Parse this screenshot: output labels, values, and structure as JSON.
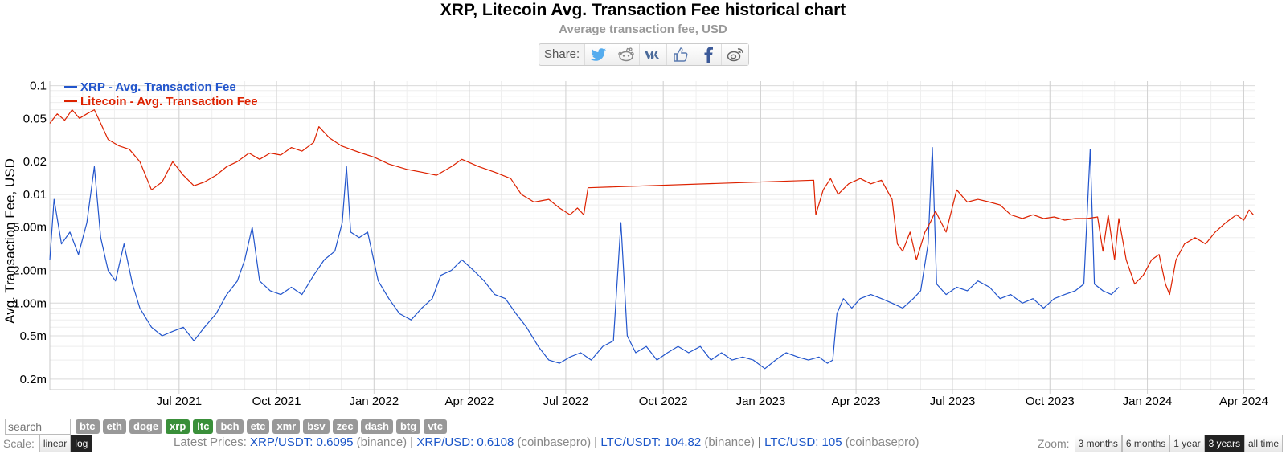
{
  "header": {
    "title": "XRP, Litecoin Avg. Transaction Fee historical chart",
    "subtitle": "Average transaction fee, USD"
  },
  "share": {
    "label": "Share:",
    "buttons": [
      "twitter-icon",
      "reddit-icon",
      "vk-icon",
      "like-icon",
      "facebook-icon",
      "weibo-icon"
    ]
  },
  "colors": {
    "xrp": "#2255cc",
    "ltc": "#dd2200",
    "grid": "#e3e3e3"
  },
  "chart_data": {
    "type": "line",
    "yscale": "log",
    "ylabel": "Avg. Transaction Fee, USD",
    "ylim": [
      0.00016,
      0.11
    ],
    "xlim": [
      "2021-03-01",
      "2024-04-12"
    ],
    "grid": true,
    "legend_position": "top-left",
    "y_ticks": [
      {
        "value": 0.1,
        "label": "0.1"
      },
      {
        "value": 0.05,
        "label": "0.05"
      },
      {
        "value": 0.02,
        "label": "0.02"
      },
      {
        "value": 0.01,
        "label": "0.01"
      },
      {
        "value": 0.005,
        "label": "5.00m"
      },
      {
        "value": 0.002,
        "label": "2.00m"
      },
      {
        "value": 0.001,
        "label": "1.00m"
      },
      {
        "value": 0.0005,
        "label": "0.5m"
      },
      {
        "value": 0.0002,
        "label": "0.2m"
      }
    ],
    "x_ticks": [
      {
        "date": "2021-07-01",
        "label": "Jul 2021"
      },
      {
        "date": "2021-10-01",
        "label": "Oct 2021"
      },
      {
        "date": "2022-01-01",
        "label": "Jan 2022"
      },
      {
        "date": "2022-04-01",
        "label": "Apr 2022"
      },
      {
        "date": "2022-07-01",
        "label": "Jul 2022"
      },
      {
        "date": "2022-10-01",
        "label": "Oct 2022"
      },
      {
        "date": "2023-01-01",
        "label": "Jan 2023"
      },
      {
        "date": "2023-04-01",
        "label": "Apr 2023"
      },
      {
        "date": "2023-07-01",
        "label": "Jul 2023"
      },
      {
        "date": "2023-10-01",
        "label": "Oct 2023"
      },
      {
        "date": "2024-01-01",
        "label": "Jan 2024"
      },
      {
        "date": "2024-04-01",
        "label": "Apr 2024"
      }
    ],
    "series": [
      {
        "name": "XRP - Avg. Transaction Fee",
        "color": "#2255cc",
        "points": [
          [
            "2021-03-01",
            0.0025
          ],
          [
            "2021-03-05",
            0.009
          ],
          [
            "2021-03-12",
            0.0035
          ],
          [
            "2021-03-20",
            0.0045
          ],
          [
            "2021-03-28",
            0.0028
          ],
          [
            "2021-04-05",
            0.0055
          ],
          [
            "2021-04-12",
            0.018
          ],
          [
            "2021-04-18",
            0.004
          ],
          [
            "2021-04-25",
            0.002
          ],
          [
            "2021-05-02",
            0.0016
          ],
          [
            "2021-05-10",
            0.0035
          ],
          [
            "2021-05-18",
            0.0015
          ],
          [
            "2021-05-25",
            0.0009
          ],
          [
            "2021-06-05",
            0.0006
          ],
          [
            "2021-06-15",
            0.0005
          ],
          [
            "2021-06-25",
            0.00055
          ],
          [
            "2021-07-05",
            0.0006
          ],
          [
            "2021-07-15",
            0.00045
          ],
          [
            "2021-07-25",
            0.0006
          ],
          [
            "2021-08-05",
            0.0008
          ],
          [
            "2021-08-15",
            0.0012
          ],
          [
            "2021-08-25",
            0.0016
          ],
          [
            "2021-09-01",
            0.0025
          ],
          [
            "2021-09-08",
            0.005
          ],
          [
            "2021-09-15",
            0.0016
          ],
          [
            "2021-09-25",
            0.0013
          ],
          [
            "2021-10-05",
            0.0012
          ],
          [
            "2021-10-15",
            0.0014
          ],
          [
            "2021-10-25",
            0.0012
          ],
          [
            "2021-11-05",
            0.0018
          ],
          [
            "2021-11-15",
            0.0025
          ],
          [
            "2021-11-25",
            0.003
          ],
          [
            "2021-12-02",
            0.0055
          ],
          [
            "2021-12-06",
            0.018
          ],
          [
            "2021-12-10",
            0.0045
          ],
          [
            "2021-12-18",
            0.004
          ],
          [
            "2021-12-26",
            0.0045
          ],
          [
            "2022-01-05",
            0.0016
          ],
          [
            "2022-01-15",
            0.0011
          ],
          [
            "2022-01-25",
            0.0008
          ],
          [
            "2022-02-05",
            0.0007
          ],
          [
            "2022-02-15",
            0.0009
          ],
          [
            "2022-02-25",
            0.0011
          ],
          [
            "2022-03-05",
            0.0018
          ],
          [
            "2022-03-15",
            0.002
          ],
          [
            "2022-03-25",
            0.0025
          ],
          [
            "2022-04-05",
            0.002
          ],
          [
            "2022-04-15",
            0.0016
          ],
          [
            "2022-04-25",
            0.0012
          ],
          [
            "2022-05-05",
            0.0011
          ],
          [
            "2022-05-15",
            0.0008
          ],
          [
            "2022-05-25",
            0.0006
          ],
          [
            "2022-06-05",
            0.0004
          ],
          [
            "2022-06-15",
            0.0003
          ],
          [
            "2022-06-25",
            0.00028
          ],
          [
            "2022-07-05",
            0.00032
          ],
          [
            "2022-07-15",
            0.00035
          ],
          [
            "2022-07-25",
            0.0003
          ],
          [
            "2022-08-05",
            0.0004
          ],
          [
            "2022-08-15",
            0.00045
          ],
          [
            "2022-08-22",
            0.0055
          ],
          [
            "2022-08-28",
            0.0005
          ],
          [
            "2022-09-05",
            0.00035
          ],
          [
            "2022-09-15",
            0.0004
          ],
          [
            "2022-09-25",
            0.0003
          ],
          [
            "2022-10-05",
            0.00035
          ],
          [
            "2022-10-15",
            0.0004
          ],
          [
            "2022-10-25",
            0.00035
          ],
          [
            "2022-11-05",
            0.0004
          ],
          [
            "2022-11-15",
            0.0003
          ],
          [
            "2022-11-25",
            0.00035
          ],
          [
            "2022-12-05",
            0.0003
          ],
          [
            "2022-12-15",
            0.00032
          ],
          [
            "2022-12-25",
            0.0003
          ],
          [
            "2023-01-05",
            0.00025
          ],
          [
            "2023-01-15",
            0.0003
          ],
          [
            "2023-01-25",
            0.00035
          ],
          [
            "2023-02-05",
            0.00032
          ],
          [
            "2023-02-15",
            0.0003
          ],
          [
            "2023-02-25",
            0.00032
          ],
          [
            "2023-03-05",
            0.00028
          ],
          [
            "2023-03-10",
            0.0003
          ],
          [
            "2023-03-14",
            0.0008
          ],
          [
            "2023-03-20",
            0.0011
          ],
          [
            "2023-03-28",
            0.0009
          ],
          [
            "2023-04-05",
            0.0011
          ],
          [
            "2023-04-15",
            0.0012
          ],
          [
            "2023-04-25",
            0.0011
          ],
          [
            "2023-05-05",
            0.001
          ],
          [
            "2023-05-15",
            0.0009
          ],
          [
            "2023-05-25",
            0.0011
          ],
          [
            "2023-06-01",
            0.0013
          ],
          [
            "2023-06-08",
            0.0035
          ],
          [
            "2023-06-12",
            0.027
          ],
          [
            "2023-06-16",
            0.0015
          ],
          [
            "2023-06-25",
            0.0012
          ],
          [
            "2023-07-05",
            0.0014
          ],
          [
            "2023-07-15",
            0.0013
          ],
          [
            "2023-07-25",
            0.0016
          ],
          [
            "2023-08-05",
            0.0014
          ],
          [
            "2023-08-15",
            0.0011
          ],
          [
            "2023-08-25",
            0.0012
          ],
          [
            "2023-09-05",
            0.001
          ],
          [
            "2023-09-15",
            0.0011
          ],
          [
            "2023-09-25",
            0.0009
          ],
          [
            "2023-10-05",
            0.0011
          ],
          [
            "2023-10-15",
            0.0012
          ],
          [
            "2023-10-25",
            0.0013
          ],
          [
            "2023-11-02",
            0.0015
          ],
          [
            "2023-11-08",
            0.026
          ],
          [
            "2023-11-12",
            0.0015
          ],
          [
            "2023-11-20",
            0.0013
          ],
          [
            "2023-11-28",
            0.0012
          ],
          [
            "2023-12-05",
            0.0014
          ]
        ]
      },
      {
        "name": "Litecoin - Avg. Transaction Fee",
        "color": "#dd2200",
        "points": [
          [
            "2021-03-01",
            0.045
          ],
          [
            "2021-03-08",
            0.055
          ],
          [
            "2021-03-15",
            0.048
          ],
          [
            "2021-03-22",
            0.06
          ],
          [
            "2021-03-29",
            0.05
          ],
          [
            "2021-04-05",
            0.055
          ],
          [
            "2021-04-12",
            0.06
          ],
          [
            "2021-04-18",
            0.045
          ],
          [
            "2021-04-25",
            0.032
          ],
          [
            "2021-05-05",
            0.028
          ],
          [
            "2021-05-15",
            0.026
          ],
          [
            "2021-05-25",
            0.02
          ],
          [
            "2021-06-05",
            0.011
          ],
          [
            "2021-06-15",
            0.013
          ],
          [
            "2021-06-25",
            0.02
          ],
          [
            "2021-07-05",
            0.015
          ],
          [
            "2021-07-15",
            0.012
          ],
          [
            "2021-07-25",
            0.013
          ],
          [
            "2021-08-05",
            0.015
          ],
          [
            "2021-08-15",
            0.018
          ],
          [
            "2021-08-25",
            0.02
          ],
          [
            "2021-09-05",
            0.024
          ],
          [
            "2021-09-15",
            0.021
          ],
          [
            "2021-09-25",
            0.024
          ],
          [
            "2021-10-05",
            0.023
          ],
          [
            "2021-10-15",
            0.027
          ],
          [
            "2021-10-25",
            0.025
          ],
          [
            "2021-11-05",
            0.03
          ],
          [
            "2021-11-10",
            0.042
          ],
          [
            "2021-11-20",
            0.033
          ],
          [
            "2021-12-01",
            0.028
          ],
          [
            "2021-12-10",
            0.026
          ],
          [
            "2021-12-20",
            0.024
          ],
          [
            "2022-01-01",
            0.022
          ],
          [
            "2022-01-15",
            0.019
          ],
          [
            "2022-02-01",
            0.017
          ],
          [
            "2022-02-15",
            0.016
          ],
          [
            "2022-03-01",
            0.015
          ],
          [
            "2022-03-15",
            0.018
          ],
          [
            "2022-03-25",
            0.021
          ],
          [
            "2022-04-10",
            0.018
          ],
          [
            "2022-04-25",
            0.016
          ],
          [
            "2022-05-10",
            0.014
          ],
          [
            "2022-05-20",
            0.01
          ],
          [
            "2022-06-01",
            0.0085
          ],
          [
            "2022-06-15",
            0.009
          ],
          [
            "2022-06-25",
            0.0075
          ],
          [
            "2022-07-05",
            0.0065
          ],
          [
            "2022-07-12",
            0.0075
          ],
          [
            "2022-07-18",
            0.0065
          ],
          [
            "2022-07-22",
            0.0115
          ],
          [
            "2023-02-20",
            0.0135
          ],
          [
            "2023-02-22",
            0.0065
          ],
          [
            "2023-03-01",
            0.011
          ],
          [
            "2023-03-08",
            0.014
          ],
          [
            "2023-03-15",
            0.01
          ],
          [
            "2023-03-25",
            0.0125
          ],
          [
            "2023-04-05",
            0.014
          ],
          [
            "2023-04-15",
            0.0125
          ],
          [
            "2023-04-25",
            0.0135
          ],
          [
            "2023-05-05",
            0.009
          ],
          [
            "2023-05-10",
            0.0035
          ],
          [
            "2023-05-15",
            0.003
          ],
          [
            "2023-05-22",
            0.0045
          ],
          [
            "2023-05-28",
            0.0025
          ],
          [
            "2023-06-05",
            0.0045
          ],
          [
            "2023-06-10",
            0.0055
          ],
          [
            "2023-06-15",
            0.007
          ],
          [
            "2023-06-25",
            0.0045
          ],
          [
            "2023-07-05",
            0.011
          ],
          [
            "2023-07-15",
            0.0085
          ],
          [
            "2023-07-25",
            0.009
          ],
          [
            "2023-08-05",
            0.0085
          ],
          [
            "2023-08-15",
            0.008
          ],
          [
            "2023-08-25",
            0.0065
          ],
          [
            "2023-09-05",
            0.006
          ],
          [
            "2023-09-15",
            0.0065
          ],
          [
            "2023-09-25",
            0.006
          ],
          [
            "2023-10-05",
            0.0062
          ],
          [
            "2023-10-15",
            0.0058
          ],
          [
            "2023-10-25",
            0.006
          ],
          [
            "2023-11-05",
            0.006
          ],
          [
            "2023-11-15",
            0.0062
          ],
          [
            "2023-11-20",
            0.003
          ],
          [
            "2023-11-25",
            0.0065
          ],
          [
            "2023-12-01",
            0.0025
          ],
          [
            "2023-12-05",
            0.006
          ],
          [
            "2023-12-12",
            0.0025
          ],
          [
            "2023-12-20",
            0.0015
          ],
          [
            "2023-12-28",
            0.0018
          ],
          [
            "2024-01-05",
            0.0025
          ],
          [
            "2024-01-12",
            0.0028
          ],
          [
            "2024-01-18",
            0.0015
          ],
          [
            "2024-01-22",
            0.0012
          ],
          [
            "2024-01-28",
            0.0025
          ],
          [
            "2024-02-05",
            0.0035
          ],
          [
            "2024-02-15",
            0.004
          ],
          [
            "2024-02-25",
            0.0035
          ],
          [
            "2024-03-05",
            0.0045
          ],
          [
            "2024-03-15",
            0.0055
          ],
          [
            "2024-03-25",
            0.0065
          ],
          [
            "2024-04-01",
            0.0058
          ],
          [
            "2024-04-06",
            0.0072
          ],
          [
            "2024-04-10",
            0.0065
          ]
        ]
      }
    ]
  },
  "controls": {
    "search_placeholder": "search",
    "coins": [
      "btc",
      "eth",
      "doge",
      "xrp",
      "ltc",
      "bch",
      "etc",
      "xmr",
      "bsv",
      "zec",
      "dash",
      "btg",
      "vtc"
    ],
    "active_coins": [
      "xrp",
      "ltc"
    ],
    "scale": {
      "label": "Scale:",
      "options": [
        "linear",
        "log"
      ],
      "active": "log"
    },
    "zoom": {
      "label": "Zoom:",
      "options": [
        "3 months",
        "6 months",
        "1 year",
        "3 years",
        "all time"
      ],
      "active": "3 years"
    }
  },
  "prices": {
    "label": "Latest Prices:",
    "items": [
      {
        "pair": "XRP/USDT:",
        "value": "0.6095",
        "source": "(binance)"
      },
      {
        "pair": "XRP/USD:",
        "value": "0.6108",
        "source": "(coinbasepro)"
      },
      {
        "pair": "LTC/USDT:",
        "value": "104.82",
        "source": "(binance)"
      },
      {
        "pair": "LTC/USD:",
        "value": "105",
        "source": "(coinbasepro)"
      }
    ]
  }
}
